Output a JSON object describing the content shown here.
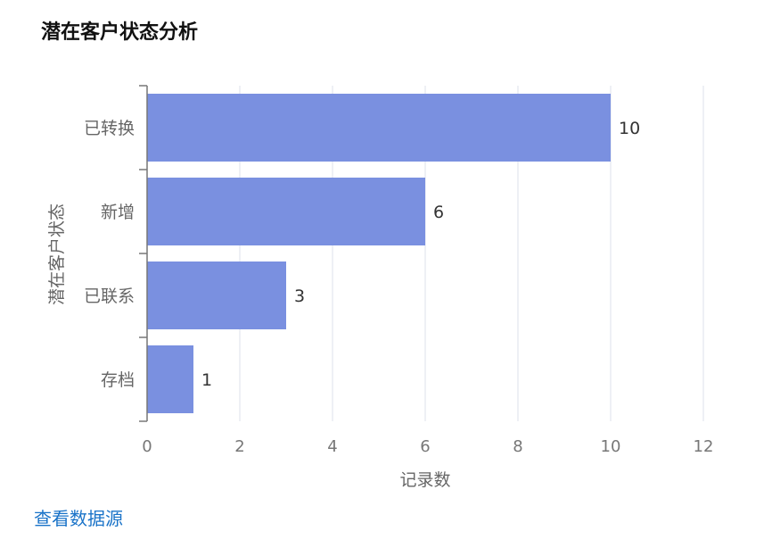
{
  "chart_data": {
    "type": "bar",
    "orientation": "horizontal",
    "title": "潜在客户状态分析",
    "categories": [
      "已转换",
      "新增",
      "已联系",
      "存档"
    ],
    "values": [
      10,
      6,
      3,
      1
    ],
    "xlabel": "记录数",
    "ylabel": "潜在客户状态",
    "xlim": [
      0,
      12
    ],
    "xticks": [
      "0",
      "2",
      "4",
      "6",
      "8",
      "10",
      "12"
    ],
    "grid": true,
    "bar_color": "#7a90e0"
  },
  "footer": {
    "link_label": "查看数据源"
  }
}
